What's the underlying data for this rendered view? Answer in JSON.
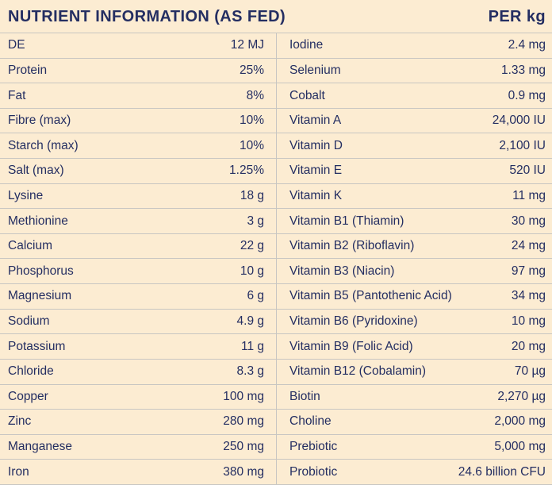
{
  "header": {
    "title": "NUTRIENT INFORMATION (AS FED)",
    "unit": "PER kg"
  },
  "colors": {
    "background": "#fcecd2",
    "text": "#242e62",
    "divider": "#c8c6c2"
  },
  "table": {
    "left": [
      {
        "label": "DE",
        "value": "12 MJ"
      },
      {
        "label": "Protein",
        "value": "25%"
      },
      {
        "label": "Fat",
        "value": "8%"
      },
      {
        "label": "Fibre (max)",
        "value": "10%"
      },
      {
        "label": "Starch (max)",
        "value": "10%"
      },
      {
        "label": "Salt (max)",
        "value": "1.25%"
      },
      {
        "label": "Lysine",
        "value": "18 g"
      },
      {
        "label": "Methionine",
        "value": "3 g"
      },
      {
        "label": "Calcium",
        "value": "22 g"
      },
      {
        "label": "Phosphorus",
        "value": "10 g"
      },
      {
        "label": "Magnesium",
        "value": "6 g"
      },
      {
        "label": "Sodium",
        "value": "4.9 g"
      },
      {
        "label": "Potassium",
        "value": "11 g"
      },
      {
        "label": "Chloride",
        "value": "8.3 g"
      },
      {
        "label": "Copper",
        "value": "100 mg"
      },
      {
        "label": "Zinc",
        "value": "280 mg"
      },
      {
        "label": "Manganese",
        "value": "250 mg"
      },
      {
        "label": "Iron",
        "value": "380 mg"
      }
    ],
    "right": [
      {
        "label": "Iodine",
        "value": "2.4 mg"
      },
      {
        "label": "Selenium",
        "value": "1.33 mg"
      },
      {
        "label": "Cobalt",
        "value": "0.9 mg"
      },
      {
        "label": "Vitamin A",
        "value": "24,000 IU"
      },
      {
        "label": "Vitamin D",
        "value": "2,100 IU"
      },
      {
        "label": "Vitamin E",
        "value": "520 IU"
      },
      {
        "label": "Vitamin K",
        "value": "11 mg"
      },
      {
        "label": "Vitamin B1 (Thiamin)",
        "value": "30 mg"
      },
      {
        "label": "Vitamin B2 (Riboflavin)",
        "value": "24 mg"
      },
      {
        "label": "Vitamin B3 (Niacin)",
        "value": "97 mg"
      },
      {
        "label": "Vitamin B5 (Pantothenic Acid)",
        "value": "34 mg"
      },
      {
        "label": "Vitamin B6 (Pyridoxine)",
        "value": "10 mg"
      },
      {
        "label": "Vitamin B9 (Folic Acid)",
        "value": "20 mg"
      },
      {
        "label": "Vitamin B12 (Cobalamin)",
        "value": "70 µg"
      },
      {
        "label": "Biotin",
        "value": "2,270 µg"
      },
      {
        "label": "Choline",
        "value": "2,000 mg"
      },
      {
        "label": "Prebiotic",
        "value": "5,000 mg"
      },
      {
        "label": "Probiotic",
        "value": "24.6 billion CFU"
      }
    ]
  }
}
